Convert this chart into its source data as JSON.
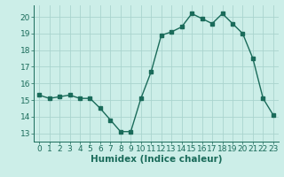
{
  "x": [
    0,
    1,
    2,
    3,
    4,
    5,
    6,
    7,
    8,
    9,
    10,
    11,
    12,
    13,
    14,
    15,
    16,
    17,
    18,
    19,
    20,
    21,
    22,
    23
  ],
  "y": [
    15.3,
    15.1,
    15.2,
    15.3,
    15.1,
    15.1,
    14.5,
    13.8,
    13.1,
    13.1,
    15.1,
    16.7,
    18.9,
    19.1,
    19.4,
    20.2,
    19.9,
    19.6,
    20.2,
    19.6,
    19.0,
    17.5,
    15.1,
    14.1
  ],
  "line_color": "#1a6b5a",
  "marker": "s",
  "marker_size": 2.5,
  "bg_color": "#cceee8",
  "grid_color": "#aad4ce",
  "xlabel": "Humidex (Indice chaleur)",
  "ylim": [
    12.5,
    20.7
  ],
  "xlim": [
    -0.5,
    23.5
  ],
  "yticks": [
    13,
    14,
    15,
    16,
    17,
    18,
    19,
    20
  ],
  "xticks": [
    0,
    1,
    2,
    3,
    4,
    5,
    6,
    7,
    8,
    9,
    10,
    11,
    12,
    13,
    14,
    15,
    16,
    17,
    18,
    19,
    20,
    21,
    22,
    23
  ],
  "xlabel_fontsize": 7.5,
  "tick_fontsize": 6.5,
  "line_width": 1.0
}
